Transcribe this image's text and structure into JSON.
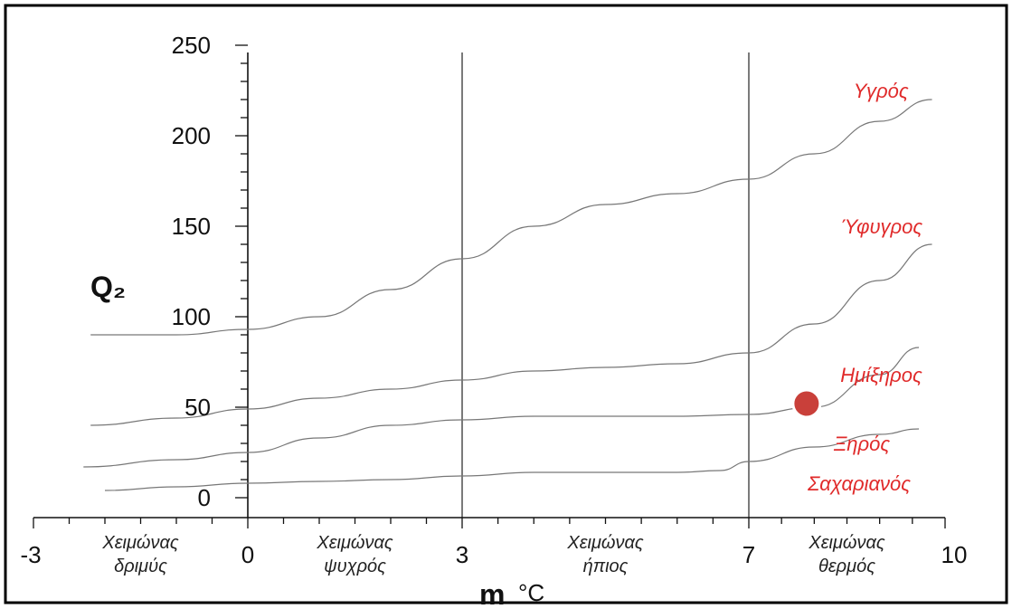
{
  "chart_data": {
    "type": "line",
    "ylabel": "Q₂",
    "xlabel_main": "m",
    "xlabel_unit": "°C",
    "xlim": [
      -3,
      10
    ],
    "ylim": [
      0,
      250
    ],
    "x_ticks": [
      "-3",
      "0",
      "3",
      "7",
      "10"
    ],
    "y_ticks": [
      "0",
      "50",
      "100",
      "150",
      "200",
      "250"
    ],
    "y_tick_values": [
      0,
      50,
      100,
      150,
      200,
      250
    ],
    "x_tick_values": [
      -3,
      0,
      3,
      7,
      10
    ],
    "vertical_lines": [
      0,
      3,
      7
    ],
    "zones": [
      {
        "name": "Υγρός",
        "x": 8.6,
        "y": 225
      },
      {
        "name": "Ύφυγρος",
        "x": 8.4,
        "y": 150
      },
      {
        "name": "Ημίξηρος",
        "x": 8.4,
        "y": 68
      },
      {
        "name": "Ξηρός",
        "x": 8.3,
        "y": 30
      },
      {
        "name": "Σαχαριανός",
        "x": 7.9,
        "y": 8
      }
    ],
    "seasons": [
      {
        "line1": "Χειμώνας",
        "line2": "δριμύς",
        "x": -1.5
      },
      {
        "line1": "Χειμώνας",
        "line2": "ψυχρός",
        "x": 1.5
      },
      {
        "line1": "Χειμώνας",
        "line2": "ήπιος",
        "x": 5.0
      },
      {
        "line1": "Χειμώνας",
        "line2": "θερμός",
        "x": 8.5
      }
    ],
    "series": [
      {
        "x": [
          -2.2,
          -1,
          0,
          1,
          2,
          3,
          4,
          5,
          6,
          7,
          8,
          9,
          9.8
        ],
        "y": [
          90,
          90,
          93,
          100,
          115,
          132,
          150,
          162,
          168,
          176,
          190,
          208,
          220
        ]
      },
      {
        "x": [
          -2.2,
          -1,
          0,
          1,
          2,
          3,
          4,
          5,
          6,
          7,
          8,
          9,
          9.8
        ],
        "y": [
          40,
          44,
          49,
          55,
          60,
          65,
          70,
          72,
          74,
          80,
          96,
          120,
          140
        ]
      },
      {
        "x": [
          -2.3,
          -1,
          0,
          1,
          2,
          3,
          4,
          5,
          6,
          7,
          8,
          9,
          9.6
        ],
        "y": [
          17,
          21,
          25,
          33,
          40,
          43,
          45,
          45,
          45,
          46,
          50,
          68,
          83
        ]
      },
      {
        "x": [
          -2.0,
          -1,
          0,
          1,
          2,
          3,
          4,
          5,
          6,
          6.6,
          7,
          8,
          9,
          9.6
        ],
        "y": [
          4,
          6,
          8,
          9,
          10,
          12,
          14,
          14,
          14,
          15,
          20,
          28,
          35,
          38
        ]
      }
    ],
    "marker": {
      "x": 7.8,
      "y": 30,
      "color": "#c9403a"
    }
  }
}
